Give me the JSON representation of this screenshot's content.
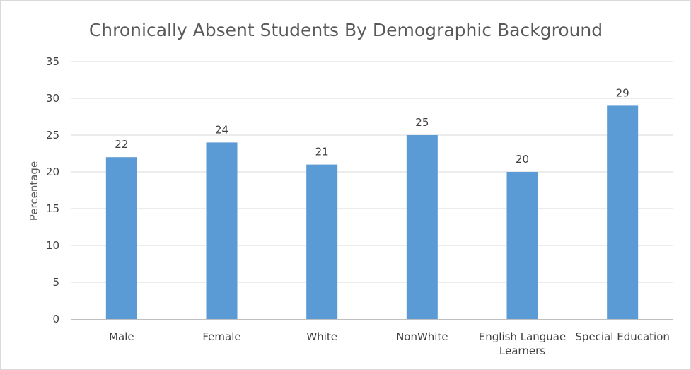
{
  "chart_data": {
    "type": "bar",
    "title": "Chronically Absent Students By Demographic Background",
    "xlabel": "",
    "ylabel": "Percentage",
    "ylim": [
      0,
      35
    ],
    "ytick_step": 5,
    "grid": true,
    "legend": "none",
    "bar_color": "#5b9bd5",
    "categories": [
      "Male",
      "Female",
      "White",
      "NonWhite",
      "English Languae Learners",
      "Special Education"
    ],
    "category_label_lines": [
      [
        "Male"
      ],
      [
        "Female"
      ],
      [
        "White"
      ],
      [
        "NonWhite"
      ],
      [
        "English Languae",
        "Learners"
      ],
      [
        "Special Education"
      ]
    ],
    "values": [
      22,
      24,
      21,
      25,
      20,
      29
    ],
    "data_labels": [
      "22",
      "24",
      "21",
      "25",
      "20",
      "29"
    ]
  }
}
